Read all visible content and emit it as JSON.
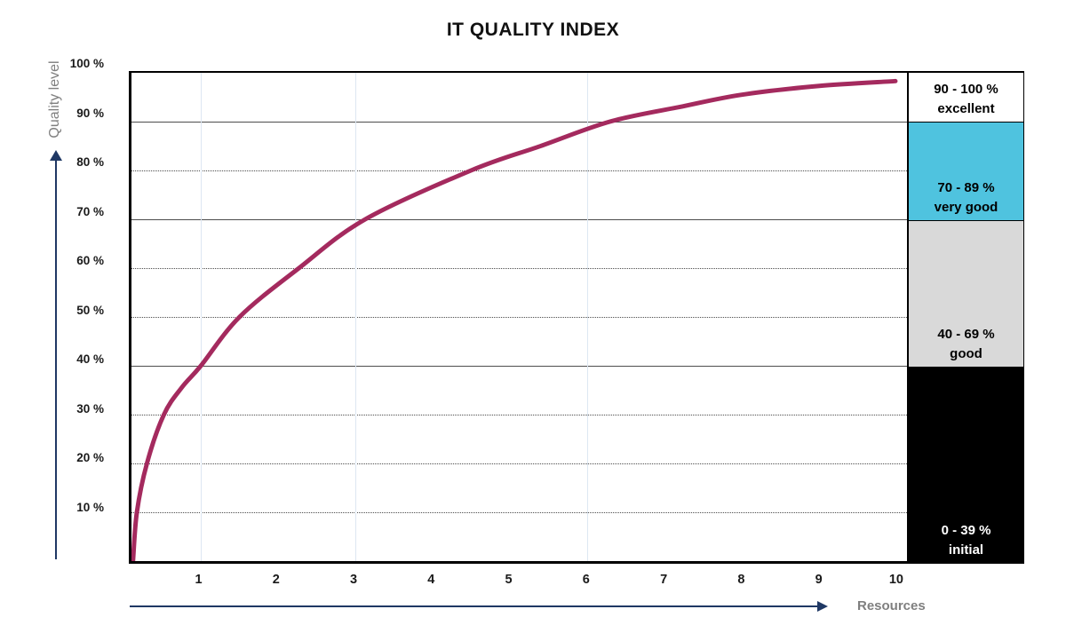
{
  "title": "IT QUALITY INDEX",
  "axes": {
    "y_title": "Quality level",
    "x_title": "Resources"
  },
  "legend_bands": [
    {
      "range": "90 - 100 %",
      "label": "excellent",
      "from": 90,
      "to": 100,
      "bg": "#ffffff",
      "fg": "#000000"
    },
    {
      "range": "70 - 89 %",
      "label": "very good",
      "from": 70,
      "to": 90,
      "bg": "#4fc3df",
      "fg": "#000000"
    },
    {
      "range": "40 - 69 %",
      "label": "good",
      "from": 40,
      "to": 70,
      "bg": "#d9d9d9",
      "fg": "#000000"
    },
    {
      "range": "0 - 39 %",
      "label": "initial",
      "from": 0,
      "to": 40,
      "bg": "#000000",
      "fg": "#ffffff"
    }
  ],
  "chart_data": {
    "type": "line",
    "title": "IT QUALITY INDEX",
    "xlabel": "Resources",
    "ylabel": "Quality level",
    "xlim": [
      0.1,
      10.15
    ],
    "ylim": [
      0,
      100
    ],
    "y_unit": "%",
    "x_ticks": [
      1,
      2,
      3,
      4,
      5,
      6,
      7,
      8,
      9,
      10
    ],
    "y_ticks_pct": [
      10,
      20,
      30,
      40,
      50,
      60,
      70,
      80,
      90,
      100
    ],
    "y_tick_suffix": " %",
    "solid_gridlines_pct": [
      90,
      70,
      40
    ],
    "dotted_gridlines_pct": [
      80,
      60,
      50,
      30,
      20,
      10
    ],
    "faint_vertical_x": [
      1,
      3,
      6
    ],
    "legend_position": "right-bands",
    "grid": true,
    "series": [
      {
        "name": "quality-curve",
        "color": "#a42a5e",
        "points": [
          [
            0.12,
            0
          ],
          [
            0.17,
            10
          ],
          [
            0.3,
            20
          ],
          [
            0.52,
            30
          ],
          [
            0.75,
            35.5
          ],
          [
            1.0,
            40
          ],
          [
            1.5,
            50
          ],
          [
            2.27,
            60
          ],
          [
            3.13,
            70
          ],
          [
            4.5,
            80
          ],
          [
            5.4,
            85
          ],
          [
            6.3,
            90
          ],
          [
            7.2,
            93
          ],
          [
            8.0,
            95.5
          ],
          [
            9.0,
            97.3
          ],
          [
            10.0,
            98.3
          ]
        ]
      }
    ]
  },
  "colors": {
    "curve": "#a42a5e",
    "arrow": "#1f3864",
    "axis_title_gray": "#7f7f7f",
    "band_cyan": "#4fc3df",
    "band_gray": "#d9d9d9",
    "band_black": "#000000"
  }
}
